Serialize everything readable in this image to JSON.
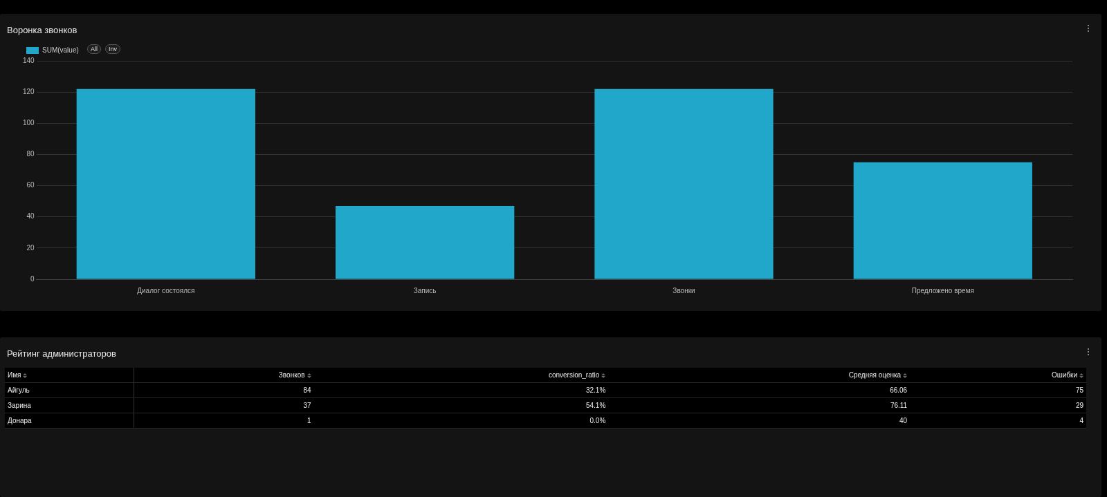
{
  "chart_data": [
    {
      "type": "bar",
      "title": "Воронка звонков",
      "categories": [
        "Диалог состоялся",
        "Запись",
        "Звонки",
        "Предложено время"
      ],
      "series": [
        {
          "name": "SUM(value)",
          "color": "#20a7c9",
          "values": [
            122,
            47,
            122,
            75
          ]
        }
      ],
      "ylim": [
        0,
        140
      ],
      "yticks": [
        0,
        20,
        40,
        60,
        80,
        100,
        120,
        140
      ],
      "grid": "y",
      "legend": "top left",
      "annotations": [
        "All",
        "Inv"
      ]
    },
    {
      "type": "other",
      "title": "Рейтинг администраторов",
      "xlabel": "Имя",
      "categories": [
        "Айгуль",
        "Зарина",
        "Донара"
      ],
      "series": [
        {
          "name": "Звонков",
          "values": [
            84,
            37,
            1
          ]
        },
        {
          "name": "conversion_ratio",
          "values": [
            32.1,
            54.1,
            0.0
          ],
          "value_labels": [
            "32.1%",
            "54.1%",
            "0.0%"
          ]
        },
        {
          "name": "Средняя оценка",
          "values": [
            66.06,
            76.11,
            40
          ]
        },
        {
          "name": "Ошибки",
          "values": [
            75,
            29,
            4
          ]
        }
      ],
      "data_labels": true
    }
  ]
}
